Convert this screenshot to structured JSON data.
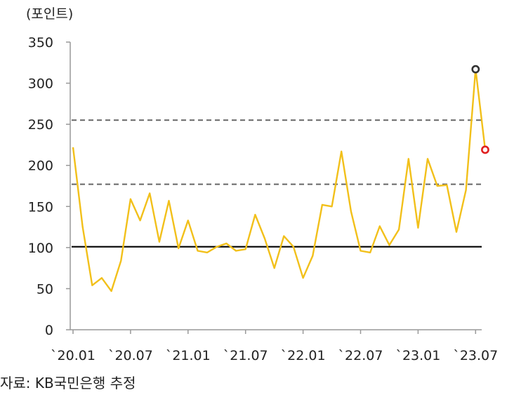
{
  "chart_data": {
    "type": "line",
    "ylabel": "(포인트)",
    "ylim": [
      0,
      350
    ],
    "yticks": [
      0,
      50,
      100,
      150,
      200,
      250,
      300,
      350
    ],
    "x_tick_labels": [
      "`20.01",
      "`20.07",
      "`21.01",
      "`21.07",
      "`22.01",
      "`22.07",
      "`23.01",
      "`23.07"
    ],
    "x": [
      "2020-01",
      "2020-02",
      "2020-03",
      "2020-04",
      "2020-05",
      "2020-06",
      "2020-07",
      "2020-08",
      "2020-09",
      "2020-10",
      "2020-11",
      "2020-12",
      "2021-01",
      "2021-02",
      "2021-03",
      "2021-04",
      "2021-05",
      "2021-06",
      "2021-07",
      "2021-08",
      "2021-09",
      "2021-10",
      "2021-11",
      "2021-12",
      "2022-01",
      "2022-02",
      "2022-03",
      "2022-04",
      "2022-05",
      "2022-06",
      "2022-07",
      "2022-08",
      "2022-09",
      "2022-10",
      "2022-11",
      "2022-12",
      "2023-01",
      "2023-02",
      "2023-03",
      "2023-04",
      "2023-05",
      "2023-06",
      "2023-07",
      "2023-08"
    ],
    "series": [
      {
        "color": "#F2C01A",
        "values": [
          222,
          125,
          54,
          63,
          47,
          84,
          159,
          133,
          166,
          107,
          157,
          99,
          133,
          96,
          94,
          101,
          105,
          96,
          98,
          140,
          111,
          75,
          114,
          101,
          63,
          90,
          152,
          150,
          217,
          144,
          96,
          94,
          126,
          103,
          122,
          208,
          124,
          208,
          175,
          176,
          119,
          170,
          317,
          219
        ]
      }
    ],
    "reference_lines": [
      {
        "value": 255,
        "style": "dashed",
        "color": "#666666"
      },
      {
        "value": 177,
        "style": "dashed",
        "color": "#666666"
      },
      {
        "value": 101,
        "style": "solid",
        "color": "#000000"
      }
    ],
    "highlighted_points": [
      {
        "x": "2023-07",
        "y": 317,
        "color": "#333333"
      },
      {
        "x": "2023-08",
        "y": 219,
        "color": "#E02020"
      }
    ],
    "grid": false,
    "legend": "none"
  },
  "source_text": "자료: KB국민은행 추정"
}
